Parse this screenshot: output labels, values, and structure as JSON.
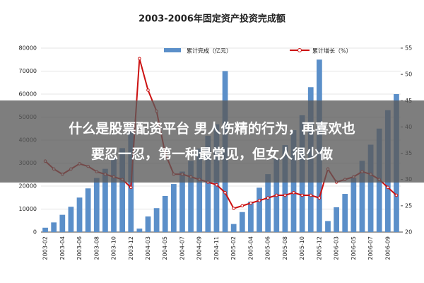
{
  "chart_data": {
    "type": "bar-line",
    "title": "2003-2006年固定资产投资完成额",
    "categories": [
      "2003-02",
      null,
      "2003-04",
      null,
      "2003-06",
      null,
      "2003-08",
      null,
      "2003-10",
      null,
      "2003-12",
      null,
      "2004-03",
      null,
      "2004-05",
      null,
      "2004-07",
      null,
      "2004-09",
      null,
      "2004-11",
      null,
      "2005-02",
      null,
      "2005-04",
      null,
      "2005-06",
      null,
      "2005-08",
      null,
      "2005-10",
      null,
      "2005-12",
      null,
      "2006-03",
      null,
      "2006-05",
      null,
      "2006-07",
      null,
      "2006-09",
      null
    ],
    "series": [
      {
        "name": "累计完成（亿元）",
        "color": "#5b8fc9",
        "type": "bar",
        "values": [
          1900,
          4200,
          7500,
          11000,
          15000,
          19000,
          23500,
          27500,
          32000,
          36500,
          45800,
          1500,
          6800,
          10400,
          15700,
          20900,
          26300,
          31000,
          36300,
          41900,
          46900,
          70000,
          3500,
          8700,
          13200,
          19300,
          25200,
          31800,
          37800,
          44300,
          50800,
          63000,
          75000,
          4800,
          10800,
          16600,
          23600,
          31000,
          38000,
          45000,
          53000,
          60000
        ]
      },
      {
        "name": "累计增长（%）",
        "color": "#cc1111",
        "type": "line",
        "axis": "y2",
        "values": [
          33.5,
          32,
          31,
          32,
          33,
          32.5,
          31.5,
          31,
          30.5,
          30,
          28.5,
          53,
          47,
          43,
          35,
          31,
          31,
          30.5,
          30,
          29.5,
          29,
          27.5,
          24.5,
          25,
          25.5,
          26,
          26.5,
          27,
          27,
          27.5,
          27,
          27,
          26.5,
          32,
          29.5,
          30,
          30.5,
          31.5,
          31,
          30,
          28.5,
          27
        ]
      }
    ],
    "ylim": [
      0,
      80000
    ],
    "yticks": [
      0,
      10000,
      20000,
      30000,
      40000,
      50000,
      60000,
      70000,
      80000
    ],
    "y2lim": [
      20,
      55
    ],
    "y2ticks": [
      20,
      25,
      30,
      35,
      40,
      45,
      50,
      55
    ],
    "grid": true
  },
  "overlay": {
    "lines": [
      "什么是股票配资平台 男人伤精的行为，再喜欢也",
      "要忍一忍，第一种最常见，但女人很少做"
    ]
  }
}
